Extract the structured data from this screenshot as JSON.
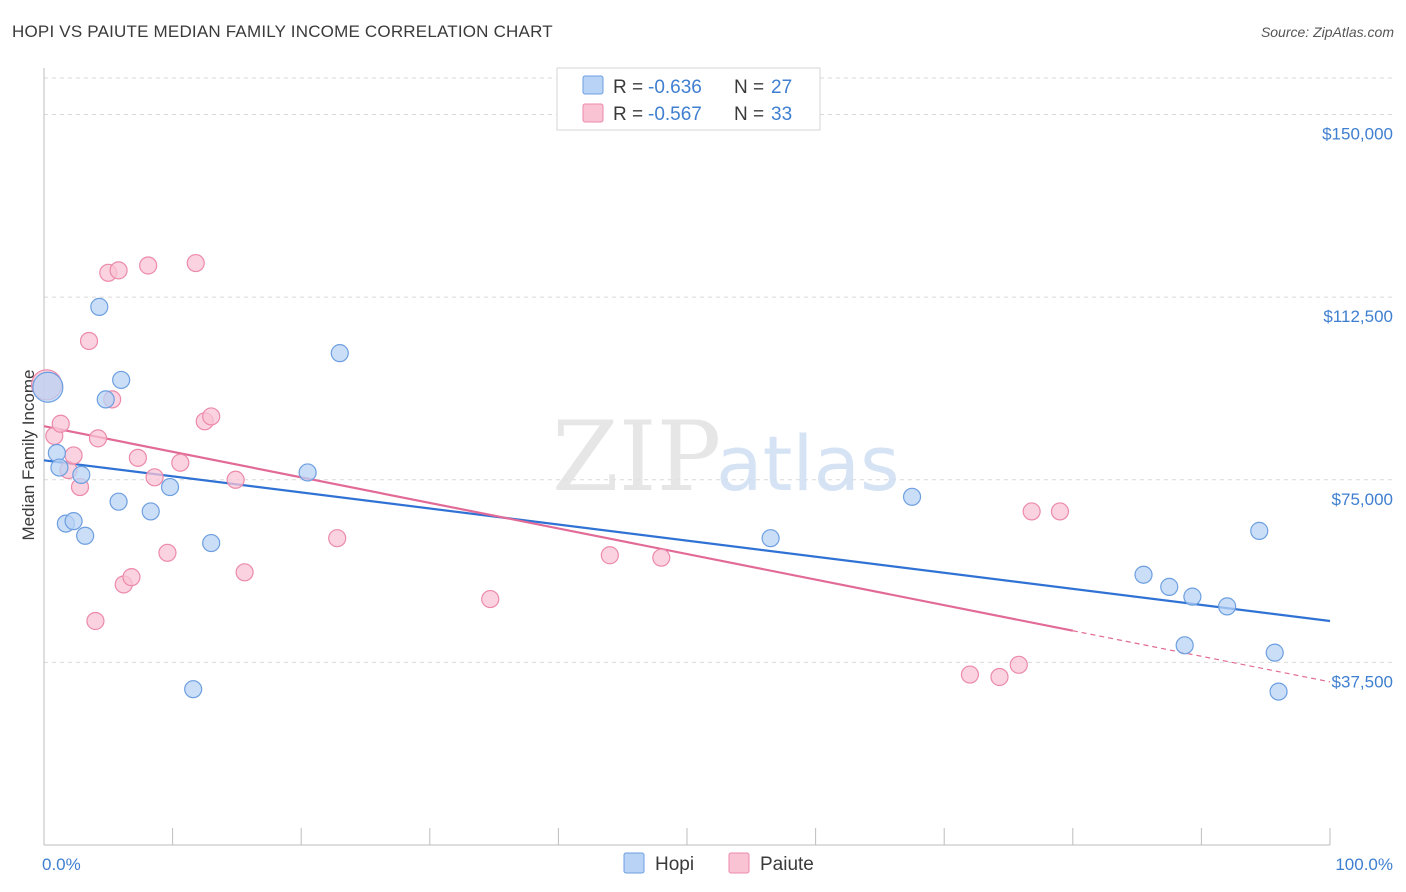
{
  "title": "HOPI VS PAIUTE MEDIAN FAMILY INCOME CORRELATION CHART",
  "source": "Source: ZipAtlas.com",
  "watermark": {
    "zip": "ZIP",
    "atlas": "atlas"
  },
  "colors": {
    "hopi_fill": "#b8d3f5",
    "hopi_stroke": "#6d9fe0",
    "hopi_line": "#2f72d4",
    "paiute_fill": "#f9c3d4",
    "paiute_stroke": "#ec8aaa",
    "paiute_line": "#e26a96",
    "axis_text": "#3f7fd0",
    "grid": "#d9d9d9"
  },
  "legend": {
    "hopi": {
      "r_label": "R = ",
      "r_value": "-0.636",
      "n_label": "N = ",
      "n_value": "27"
    },
    "paiute": {
      "r_label": "R = ",
      "r_value": "-0.567",
      "n_label": "N = ",
      "n_value": "33"
    }
  },
  "bottom_legend": {
    "hopi": "Hopi",
    "paiute": "Paiute"
  },
  "chart_data": {
    "type": "scatter",
    "title": "HOPI VS PAIUTE MEDIAN FAMILY INCOME CORRELATION CHART",
    "xlabel": "",
    "ylabel": "Median Family Income",
    "xlim": [
      0,
      100
    ],
    "ylim": [
      0,
      157500
    ],
    "x_tick_labels": [
      "0.0%",
      "100.0%"
    ],
    "y_ticks": [
      {
        "value": 37500,
        "label": "$37,500"
      },
      {
        "value": 75000,
        "label": "$75,000"
      },
      {
        "value": 112500,
        "label": "$112,500"
      },
      {
        "value": 150000,
        "label": "$150,000"
      }
    ],
    "series": [
      {
        "name": "Hopi",
        "points": [
          [
            0.3,
            94000
          ],
          [
            1.0,
            80500
          ],
          [
            1.2,
            77500
          ],
          [
            1.7,
            66000
          ],
          [
            2.3,
            66500
          ],
          [
            2.9,
            76000
          ],
          [
            3.2,
            63500
          ],
          [
            4.3,
            110500
          ],
          [
            4.8,
            91500
          ],
          [
            6.0,
            95500
          ],
          [
            5.8,
            70500
          ],
          [
            9.8,
            73500
          ],
          [
            8.3,
            68500
          ],
          [
            11.6,
            32000
          ],
          [
            13.0,
            62000
          ],
          [
            20.5,
            76500
          ],
          [
            23.0,
            101000
          ],
          [
            56.5,
            63000
          ],
          [
            67.5,
            71500
          ],
          [
            85.5,
            55500
          ],
          [
            87.5,
            53000
          ],
          [
            88.7,
            41000
          ],
          [
            89.3,
            51000
          ],
          [
            92.0,
            49000
          ],
          [
            94.5,
            64500
          ],
          [
            95.7,
            39500
          ],
          [
            96.0,
            31500
          ]
        ],
        "trend": {
          "x0": 0,
          "y0": 79000,
          "x1": 100,
          "y1": 46000,
          "dashed_from": null
        }
      },
      {
        "name": "Paiute",
        "points": [
          [
            0.2,
            94500
          ],
          [
            0.8,
            84000
          ],
          [
            1.3,
            86500
          ],
          [
            1.9,
            77000
          ],
          [
            2.3,
            80000
          ],
          [
            2.8,
            73500
          ],
          [
            3.5,
            103500
          ],
          [
            4.0,
            46000
          ],
          [
            4.2,
            83500
          ],
          [
            5.0,
            117500
          ],
          [
            5.3,
            91500
          ],
          [
            5.8,
            118000
          ],
          [
            6.2,
            53500
          ],
          [
            6.8,
            55000
          ],
          [
            7.3,
            79500
          ],
          [
            8.1,
            119000
          ],
          [
            8.6,
            75500
          ],
          [
            9.6,
            60000
          ],
          [
            10.6,
            78500
          ],
          [
            11.8,
            119500
          ],
          [
            12.5,
            87000
          ],
          [
            13.0,
            88000
          ],
          [
            14.9,
            75000
          ],
          [
            15.6,
            56000
          ],
          [
            22.8,
            63000
          ],
          [
            34.7,
            50500
          ],
          [
            44.0,
            59500
          ],
          [
            48.0,
            59000
          ],
          [
            72.0,
            35000
          ],
          [
            74.3,
            34500
          ],
          [
            75.8,
            37000
          ],
          [
            76.8,
            68500
          ],
          [
            79.0,
            68500
          ]
        ],
        "trend": {
          "x0": 0,
          "y0": 86000,
          "x1": 100,
          "y1": 33500,
          "dashed_from": 80
        }
      }
    ]
  }
}
